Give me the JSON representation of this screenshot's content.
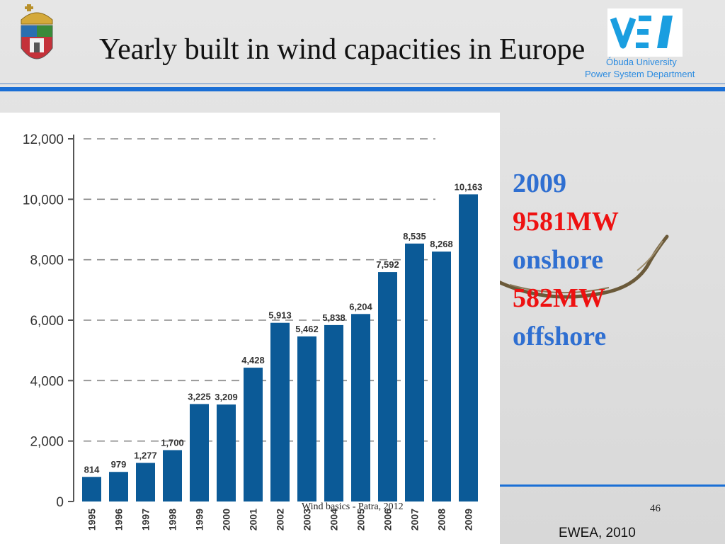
{
  "slide": {
    "title": "Yearly built in wind capacities in Europe",
    "info_lines": [
      {
        "text": "2009",
        "color": "blue"
      },
      {
        "text": "9581MW",
        "color": "red"
      },
      {
        "text": "onshore",
        "color": "blue"
      },
      {
        "text": "582MW",
        "color": "red"
      },
      {
        "text": "offshore",
        "color": "blue"
      }
    ],
    "logo": {
      "university": "Óbuda University",
      "department": "Power System Department"
    },
    "footer": {
      "text": "Wind basics - Patra, 2012",
      "page_number": "46",
      "source": "EWEA, 2010"
    }
  },
  "colors": {
    "accent": "#1a6fd6",
    "bar": "#0b5a97",
    "info_blue": "#2f6fd1",
    "info_red": "#ee1111"
  },
  "chart_data": {
    "type": "bar",
    "categories": [
      "1995",
      "1996",
      "1997",
      "1998",
      "1999",
      "2000",
      "2001",
      "2002",
      "2003",
      "2004",
      "2005",
      "2006",
      "2007",
      "2008",
      "2009"
    ],
    "values": [
      814,
      979,
      1277,
      1700,
      3225,
      3209,
      4428,
      5913,
      5462,
      5838,
      6204,
      7592,
      8535,
      8268,
      10163
    ],
    "value_labels": [
      "814",
      "979",
      "1,277",
      "1,700",
      "3,225",
      "3,209",
      "4,428",
      "5,913",
      "5,462",
      "5,838",
      "6,204",
      "7,592",
      "8,535",
      "8,268",
      "10,163"
    ],
    "y_ticks": [
      "0",
      "2,000",
      "4,000",
      "6,000",
      "8,000",
      "10,000",
      "12,000"
    ],
    "ylim": [
      0,
      12000
    ],
    "grid": true,
    "title": "",
    "xlabel": "",
    "ylabel": ""
  }
}
